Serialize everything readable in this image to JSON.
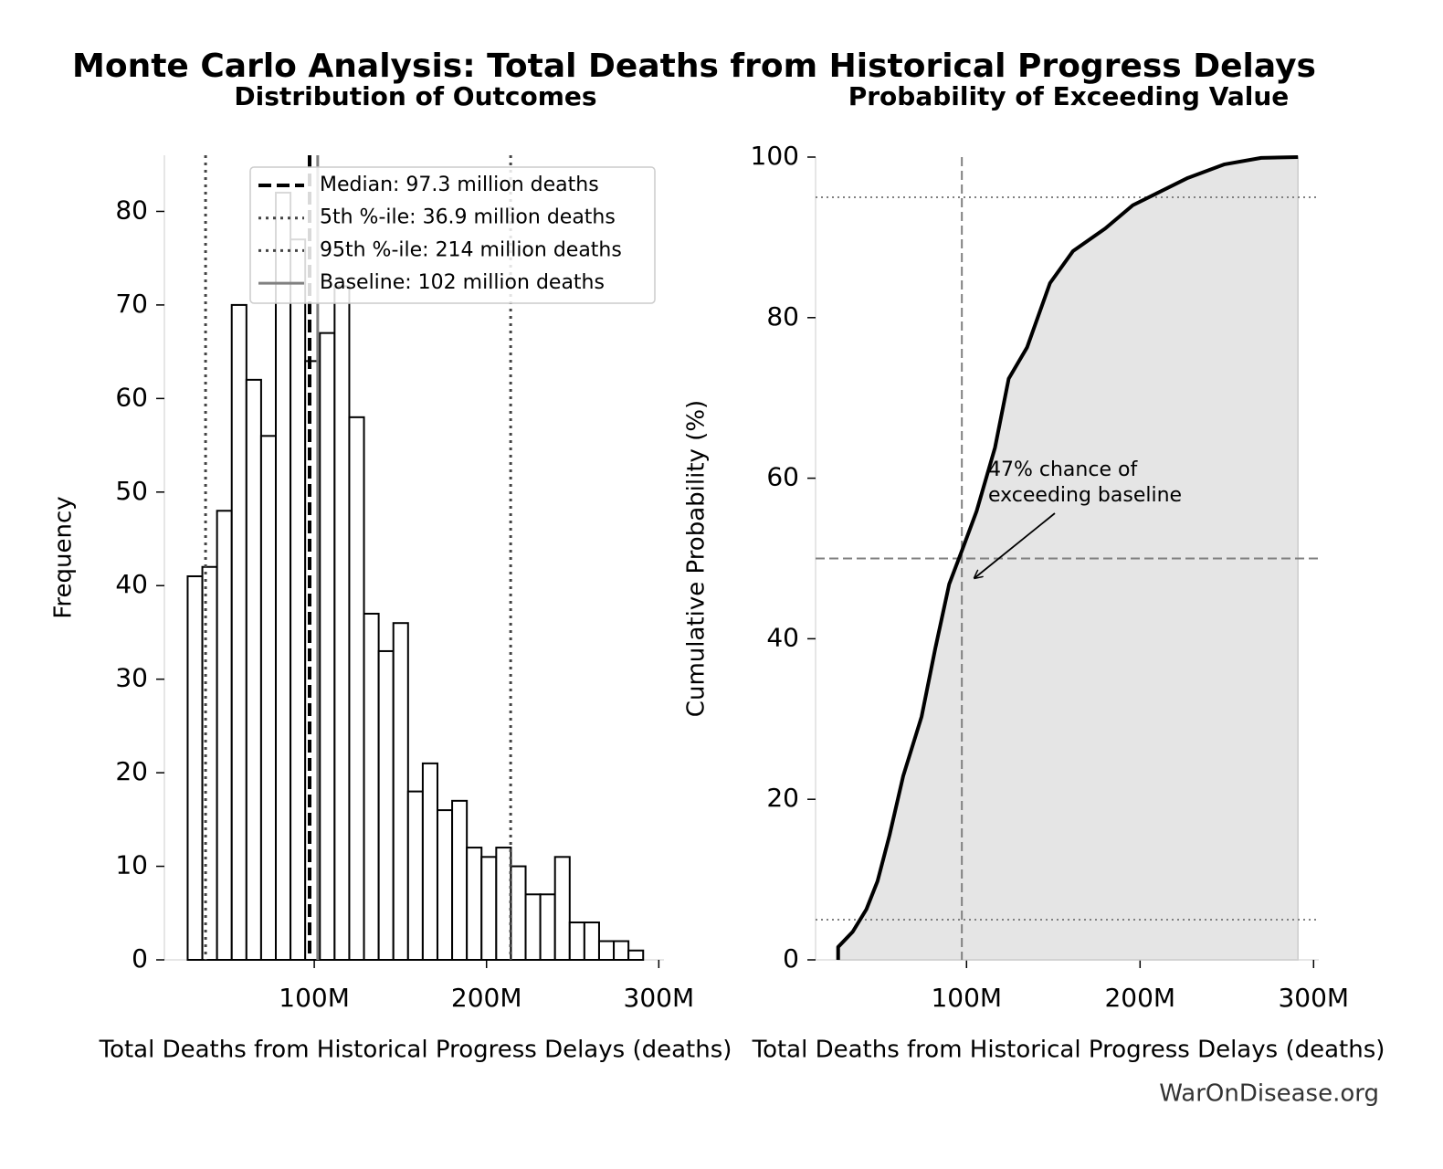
{
  "title": "Monte Carlo Analysis: Total Deaths from Historical Progress Delays",
  "footer": "WarOnDisease.org",
  "chart_data": [
    {
      "type": "histogram",
      "title": "Distribution of Outcomes",
      "xlabel": "Total Deaths from Historical Progress Delays (deaths)",
      "ylabel": "Frequency",
      "bins": [
        26500000,
        35030000,
        43560000,
        52090000,
        60620000,
        69150000,
        77680000,
        86210000,
        94740000,
        103270000,
        111800000,
        120330000,
        128860000,
        137390000,
        145920000,
        154450000,
        162980000,
        171510000,
        180040000,
        188570000,
        197100000,
        205630000,
        214160000,
        222690000,
        231220000,
        239750000,
        248280000,
        256810000,
        265340000,
        273870000,
        282400000,
        290930000
      ],
      "counts": [
        41,
        42,
        48,
        70,
        62,
        56,
        82,
        77,
        64,
        67,
        72,
        58,
        37,
        33,
        36,
        18,
        21,
        16,
        17,
        12,
        11,
        12,
        10,
        7,
        7,
        11,
        4,
        4,
        2,
        2,
        1
      ],
      "color": "#ffffff",
      "edgecolor": "#000000",
      "xlim": [
        13000000,
        303000000
      ],
      "ylim": [
        0,
        86
      ],
      "xticks": [
        {
          "value": 100000000,
          "label": "100M"
        },
        {
          "value": 200000000,
          "label": "200M"
        },
        {
          "value": 300000000,
          "label": "300M"
        }
      ],
      "yticks": [
        0,
        10,
        20,
        30,
        40,
        50,
        60,
        70,
        80
      ],
      "vlines": [
        {
          "name": "Median: 97.3 million deaths",
          "value": 97300000,
          "color": "#000000",
          "style": "dashed"
        },
        {
          "name": "5th %-ile: 36.9 million deaths",
          "value": 36900000,
          "color": "#444444",
          "style": "dotted"
        },
        {
          "name": "95th %-ile: 214 million deaths",
          "value": 214000000,
          "color": "#444444",
          "style": "dotted"
        },
        {
          "name": "Baseline: 102 million deaths",
          "value": 102000000,
          "color": "#808080",
          "style": "solid"
        }
      ],
      "legend": "upper right"
    },
    {
      "type": "line",
      "title": "Probability of Exceeding Value",
      "xlabel": "Total Deaths from Historical Progress Delays (deaths)",
      "ylabel": "Cumulative Probability (%)",
      "x": [
        26000000,
        26000000,
        34400000,
        42300000,
        48700000,
        55600000,
        63500000,
        74100000,
        82000000,
        90000000,
        97900000,
        105800000,
        116400000,
        124300000,
        134900000,
        148100000,
        161400000,
        179900000,
        195800000,
        211600000,
        227500000,
        248700000,
        269800000,
        291000000
      ],
      "values": [
        0,
        1.6,
        3.5,
        6.3,
        9.8,
        15.5,
        22.9,
        30.3,
        38.8,
        46.8,
        51.3,
        55.9,
        63.8,
        72.4,
        76.3,
        84.3,
        88.3,
        91.1,
        94,
        95.7,
        97.4,
        99.1,
        99.9,
        100
      ],
      "color": "#000000",
      "fill": "#e5e5e5",
      "xlim": [
        13000000,
        303000000
      ],
      "ylim": [
        0,
        100
      ],
      "xticks": [
        {
          "value": 100000000,
          "label": "100M"
        },
        {
          "value": 200000000,
          "label": "200M"
        },
        {
          "value": 300000000,
          "label": "300M"
        }
      ],
      "yticks": [
        0,
        20,
        40,
        60,
        80,
        100
      ],
      "hlines": [
        {
          "value": 95,
          "style": "dotted"
        },
        {
          "value": 5,
          "style": "dotted"
        },
        {
          "value": 50,
          "style": "dashed"
        }
      ],
      "vlines": [
        {
          "value": 97300000,
          "style": "dashed"
        }
      ],
      "refcolor": "#808080",
      "annotation": [
        "47% chance of",
        "exceeding baseline"
      ]
    }
  ]
}
